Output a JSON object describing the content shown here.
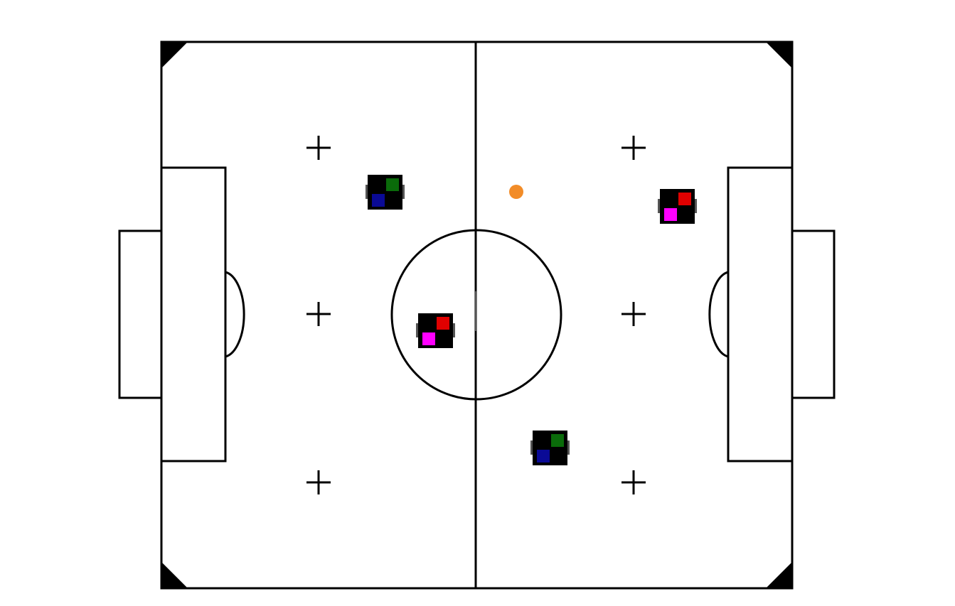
{
  "field": {
    "line_color": "#000000",
    "background_color": "#ffffff"
  },
  "ball": {
    "color": "#f28c28"
  },
  "robots": [
    {
      "id": "left-upper",
      "team": "green-blue",
      "primary": "#0a6b0a",
      "secondary": "#0a0a96"
    },
    {
      "id": "left-center",
      "team": "red-magenta",
      "primary": "#e00000",
      "secondary": "#ff00ff"
    },
    {
      "id": "right-upper",
      "team": "red-magenta",
      "primary": "#e00000",
      "secondary": "#ff00ff"
    },
    {
      "id": "right-lower",
      "team": "green-blue",
      "primary": "#0a6b0a",
      "secondary": "#0a0a96"
    }
  ]
}
